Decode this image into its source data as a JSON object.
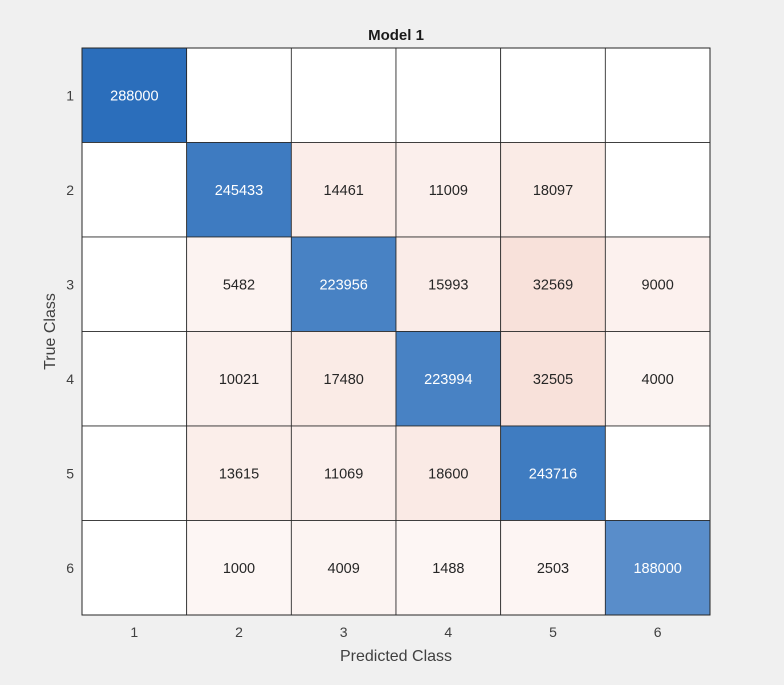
{
  "chart_data": {
    "type": "heatmap",
    "title": "Model 1",
    "xlabel": "Predicted Class",
    "ylabel": "True Class",
    "x_categories": [
      "1",
      "2",
      "3",
      "4",
      "5",
      "6"
    ],
    "y_categories": [
      "1",
      "2",
      "3",
      "4",
      "5",
      "6"
    ],
    "matrix": [
      [
        288000,
        0,
        0,
        0,
        0,
        0
      ],
      [
        0,
        245433,
        14461,
        11009,
        18097,
        0
      ],
      [
        0,
        5482,
        223956,
        15993,
        32569,
        9000
      ],
      [
        0,
        10021,
        17480,
        223994,
        32505,
        4000
      ],
      [
        0,
        13615,
        11069,
        18600,
        243716,
        0
      ],
      [
        0,
        1000,
        4009,
        1488,
        2503,
        188000
      ]
    ],
    "zero_cells_shown_empty": true,
    "colors": {
      "diagonal": "#2b6ebb",
      "off_diagonal": "#d95f3a",
      "diagonal_text": "#ffffff",
      "off_diagonal_text": "#262626",
      "grid_line": "#262626",
      "background": "#f0f0f0"
    }
  }
}
